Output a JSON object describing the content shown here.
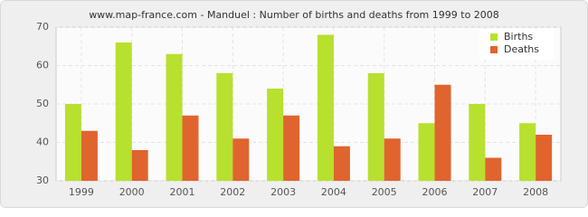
{
  "chart_data": {
    "type": "bar",
    "title": "www.map-france.com - Manduel : Number of births and deaths from 1999 to 2008",
    "categories": [
      "1999",
      "2000",
      "2001",
      "2002",
      "2003",
      "2004",
      "2005",
      "2006",
      "2007",
      "2008"
    ],
    "series": [
      {
        "name": "Births",
        "color": "#b8e02e",
        "values": [
          50,
          66,
          63,
          58,
          54,
          68,
          58,
          45,
          50,
          45
        ]
      },
      {
        "name": "Deaths",
        "color": "#e0642e",
        "values": [
          43,
          38,
          47,
          41,
          47,
          39,
          41,
          55,
          36,
          42
        ]
      }
    ],
    "ylim": [
      30,
      70
    ],
    "yticks": [
      30,
      40,
      50,
      60,
      70
    ],
    "grid": true,
    "legend": "top-right"
  }
}
